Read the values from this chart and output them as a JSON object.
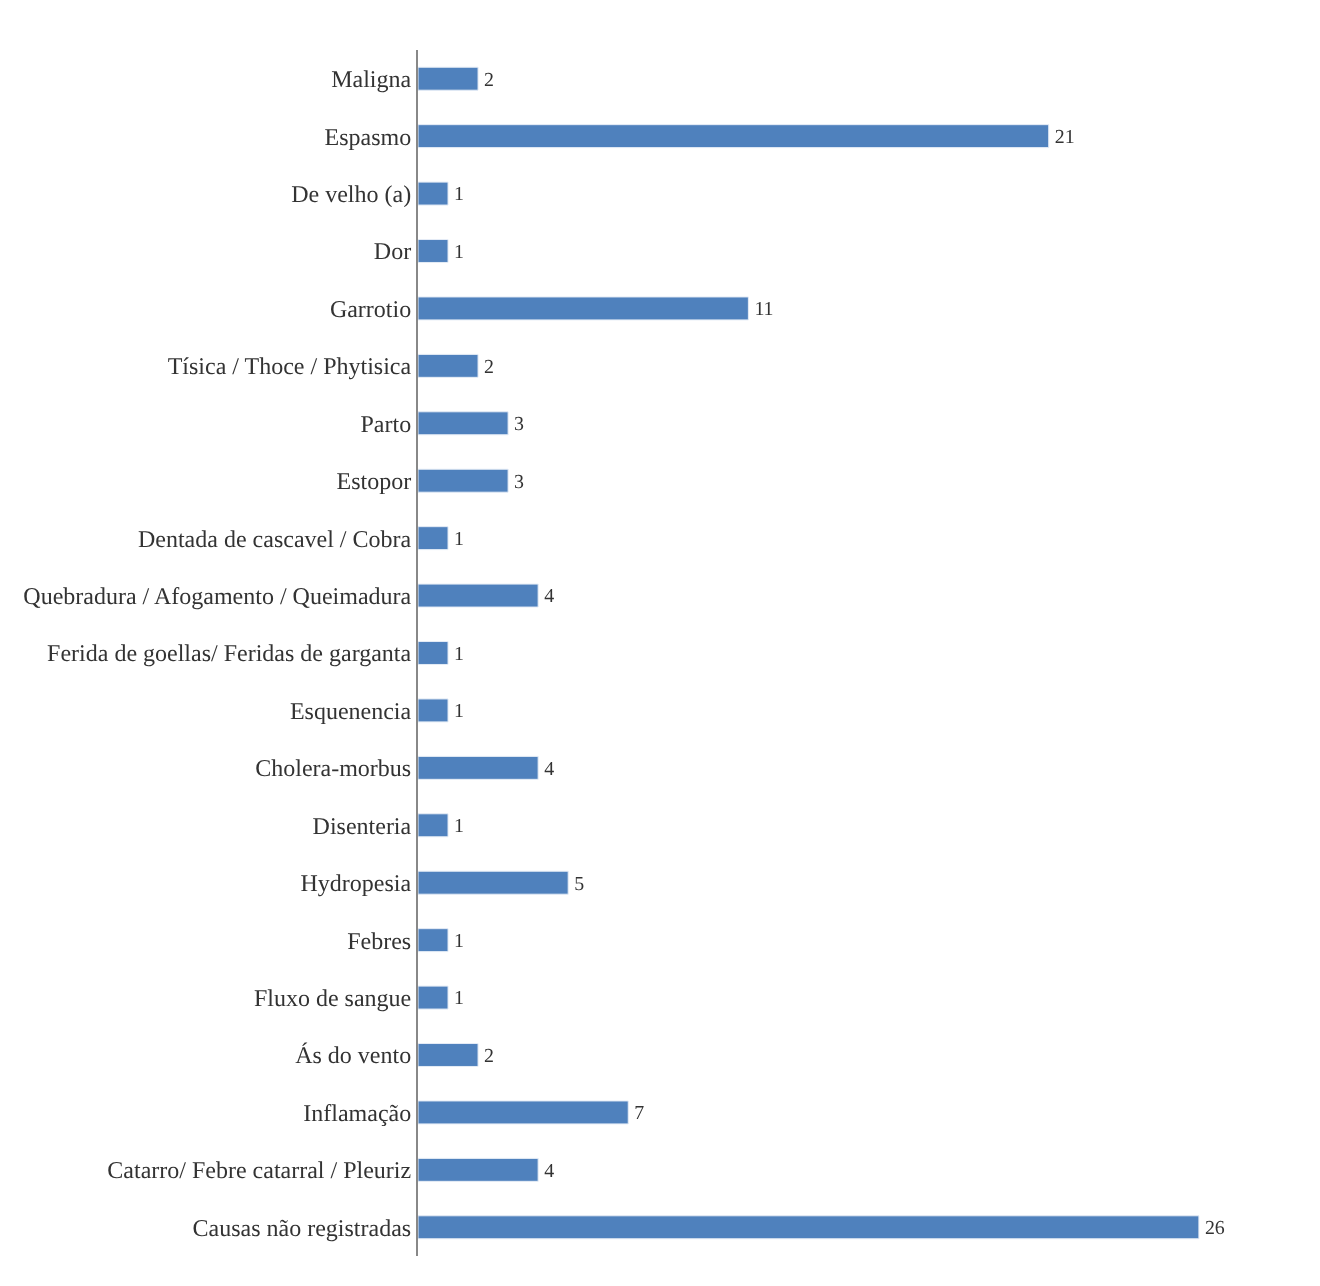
{
  "chart_data": {
    "type": "bar",
    "orientation": "horizontal",
    "data_labels": true,
    "categories": [
      "Maligna",
      "Espasmo",
      "De velho (a)",
      "Dor",
      "Garrotio",
      "Tísica / Thoce / Phytisica",
      "Parto",
      "Estopor",
      "Dentada de cascavel / Cobra",
      "Quebradura / Afogamento / Queimadura",
      "Ferida de goellas/ Feridas de garganta",
      "Esquenencia",
      "Cholera-morbus",
      "Disenteria",
      "Hydropesia",
      "Febres",
      "Fluxo de sangue",
      "Ás do vento",
      "Inflamação",
      "Catarro/ Febre catarral / Pleuriz",
      "Causas não registradas"
    ],
    "values": [
      2,
      21,
      1,
      1,
      11,
      2,
      3,
      3,
      1,
      4,
      1,
      1,
      4,
      1,
      5,
      1,
      1,
      2,
      7,
      4,
      26
    ],
    "color": "#4f81bd"
  }
}
